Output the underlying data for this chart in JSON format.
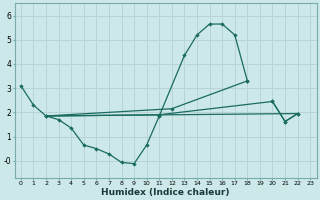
{
  "xlabel": "Humidex (Indice chaleur)",
  "background_color": "#cce8e8",
  "grid_color": "#b8d4d4",
  "line_color": "#1a6b60",
  "xlim": [
    -0.5,
    23.5
  ],
  "ylim": [
    -0.7,
    6.5
  ],
  "xticks": [
    0,
    1,
    2,
    3,
    4,
    5,
    6,
    7,
    8,
    9,
    10,
    11,
    12,
    13,
    14,
    15,
    16,
    17,
    18,
    19,
    20,
    21,
    22,
    23
  ],
  "yticks": [
    0,
    1,
    2,
    3,
    4,
    5,
    6
  ],
  "ytick_labels": [
    "-0",
    "1",
    "2",
    "3",
    "4",
    "5",
    "6"
  ],
  "curve1_x": [
    0,
    1,
    2,
    3,
    4,
    5,
    6,
    7,
    8,
    9,
    10,
    11
  ],
  "curve1_y": [
    3.1,
    2.3,
    1.85,
    1.7,
    1.35,
    0.65,
    0.5,
    0.28,
    -0.07,
    -0.12,
    0.65,
    1.85
  ],
  "curve2_x": [
    11,
    13,
    14,
    15,
    16,
    17,
    18
  ],
  "curve2_y": [
    1.85,
    4.35,
    5.2,
    5.65,
    5.65,
    5.2,
    3.3
  ],
  "line3_x": [
    2,
    12,
    18
  ],
  "line3_y": [
    1.85,
    2.15,
    3.3
  ],
  "line4_x": [
    2,
    11,
    20,
    21,
    22
  ],
  "line4_y": [
    1.85,
    1.9,
    2.45,
    1.62,
    1.95
  ],
  "line5_x": [
    2,
    21,
    22
  ],
  "line5_y": [
    1.85,
    1.62,
    1.95
  ]
}
